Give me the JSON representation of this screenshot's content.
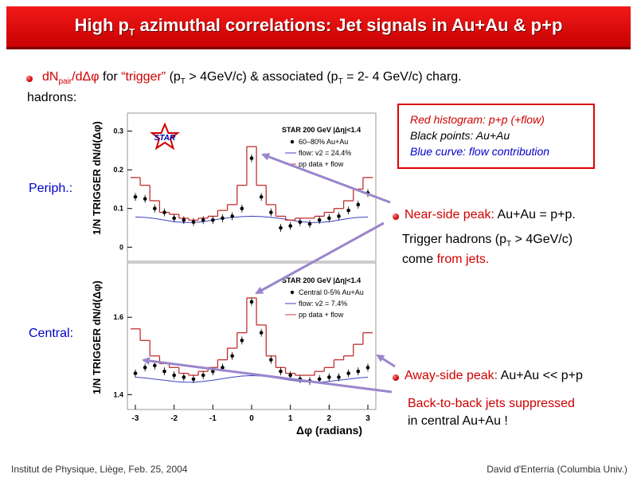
{
  "title": {
    "main": "High p",
    "sub": "T",
    "rest": " azimuthal correlations: Jet signals in Au+Au & p+p"
  },
  "intro": {
    "dn": "dN",
    "pair": "pair",
    "dphi": "/dΔφ",
    "for": " for ",
    "trigger": "“trigger”",
    "trig_pt": " (p",
    "t1": "T",
    "trig_val": " > 4GeV/c) & associated (p",
    "t2": "T",
    "assoc_val": " = 2- 4 GeV/c) charg.",
    "line2": "hadrons:"
  },
  "labels": {
    "periph": "Periph.:",
    "central": "Central:"
  },
  "legend": {
    "red": "Red histogram: p+p (+flow)",
    "black": "Black points: Au+Au",
    "blue": "Blue curve: flow contribution"
  },
  "notes": {
    "near_title": "Near-side peak:",
    "near_rest": " Au+Au = p+p.",
    "trigger_line1": "Trigger hadrons (p",
    "trigger_T": "T",
    "trigger_rest": " > 4GeV/c)",
    "trigger_line2a": "come ",
    "trigger_line2b": "from jets.",
    "away_title": "Away-side peak:",
    "away_rest": " Au+Au << p+p",
    "b2b_line1": "Back-to-back jets suppressed",
    "b2b_line2": "in central Au+Au !"
  },
  "footer": {
    "left": "Institut de Physique, Liège, Feb. 25, 2004",
    "right": "David d'Enterria (Columbia Univ.)"
  },
  "chart_data": [
    {
      "type": "line",
      "panel": "peripheral",
      "ylabel": "1/N TRIGGER dN/d(Δφ)",
      "ylim": [
        -0.02,
        0.33
      ],
      "yticks": [
        "0.3",
        "0.2",
        "0.1",
        "0"
      ],
      "legend_header": "STAR 200 GeV |Δη|<1.4",
      "legend": [
        "60–80% Au+Au",
        "flow: v2 = 24.4%",
        "pp data + flow"
      ],
      "logo": "STAR",
      "x": [
        -3.0,
        -2.75,
        -2.5,
        -2.25,
        -2.0,
        -1.75,
        -1.5,
        -1.25,
        -1.0,
        -0.75,
        -0.5,
        -0.25,
        0.0,
        0.25,
        0.5,
        0.75,
        1.0,
        1.25,
        1.5,
        1.75,
        2.0,
        2.25,
        2.5,
        2.75,
        3.0
      ],
      "series": [
        {
          "name": "60–80% Au+Au",
          "values": [
            0.13,
            0.125,
            0.1,
            0.09,
            0.075,
            0.07,
            0.065,
            0.07,
            0.07,
            0.075,
            0.08,
            0.1,
            0.23,
            0.13,
            0.09,
            0.05,
            0.055,
            0.065,
            0.06,
            0.07,
            0.075,
            0.08,
            0.095,
            0.11,
            0.14
          ]
        },
        {
          "name": "pp data + flow",
          "values": [
            0.18,
            0.16,
            0.12,
            0.09,
            0.085,
            0.075,
            0.07,
            0.075,
            0.08,
            0.095,
            0.11,
            0.16,
            0.26,
            0.16,
            0.11,
            0.08,
            0.07,
            0.075,
            0.075,
            0.08,
            0.09,
            0.1,
            0.12,
            0.15,
            0.18
          ]
        },
        {
          "name": "flow: v2 = 24.4%",
          "values": [
            0.078,
            0.077,
            0.074,
            0.07,
            0.066,
            0.064,
            0.064,
            0.066,
            0.07,
            0.074,
            0.077,
            0.079,
            0.08,
            0.079,
            0.077,
            0.074,
            0.07,
            0.066,
            0.064,
            0.064,
            0.066,
            0.07,
            0.074,
            0.077,
            0.078
          ]
        }
      ]
    },
    {
      "type": "line",
      "panel": "central",
      "ylabel": "1/N TRIGGER dN/d(Δφ)",
      "xlabel": "Δφ (radians)",
      "ylim": [
        1.38,
        1.72
      ],
      "yticks": [
        "1.6",
        "1.4"
      ],
      "xticks": [
        "-3",
        "-2",
        "-1",
        "0",
        "1",
        "2",
        "3"
      ],
      "legend_header": "STAR 200 GeV |Δη|<1.4",
      "legend": [
        "Central 0-5% Au+Au",
        "flow: v2 = 7.4%",
        "pp data + flow"
      ],
      "x": [
        -3.0,
        -2.75,
        -2.5,
        -2.25,
        -2.0,
        -1.75,
        -1.5,
        -1.25,
        -1.0,
        -0.75,
        -0.5,
        -0.25,
        0.0,
        0.25,
        0.5,
        0.75,
        1.0,
        1.25,
        1.5,
        1.75,
        2.0,
        2.25,
        2.5,
        2.75,
        3.0
      ],
      "series": [
        {
          "name": "Central 0-5% Au+Au",
          "values": [
            1.455,
            1.47,
            1.475,
            1.46,
            1.45,
            1.445,
            1.44,
            1.45,
            1.46,
            1.47,
            1.5,
            1.54,
            1.64,
            1.56,
            1.49,
            1.46,
            1.45,
            1.44,
            1.435,
            1.44,
            1.445,
            1.445,
            1.455,
            1.46,
            1.47
          ]
        },
        {
          "name": "pp data + flow",
          "values": [
            1.57,
            1.54,
            1.5,
            1.48,
            1.47,
            1.455,
            1.45,
            1.46,
            1.47,
            1.49,
            1.52,
            1.56,
            1.65,
            1.58,
            1.5,
            1.47,
            1.455,
            1.45,
            1.45,
            1.46,
            1.47,
            1.49,
            1.5,
            1.53,
            1.56
          ]
        },
        {
          "name": "flow: v2 = 7.4%",
          "values": [
            1.445,
            1.443,
            1.44,
            1.437,
            1.434,
            1.432,
            1.432,
            1.434,
            1.437,
            1.441,
            1.445,
            1.448,
            1.449,
            1.448,
            1.445,
            1.441,
            1.437,
            1.434,
            1.432,
            1.432,
            1.434,
            1.437,
            1.44,
            1.443,
            1.445
          ]
        }
      ]
    }
  ]
}
